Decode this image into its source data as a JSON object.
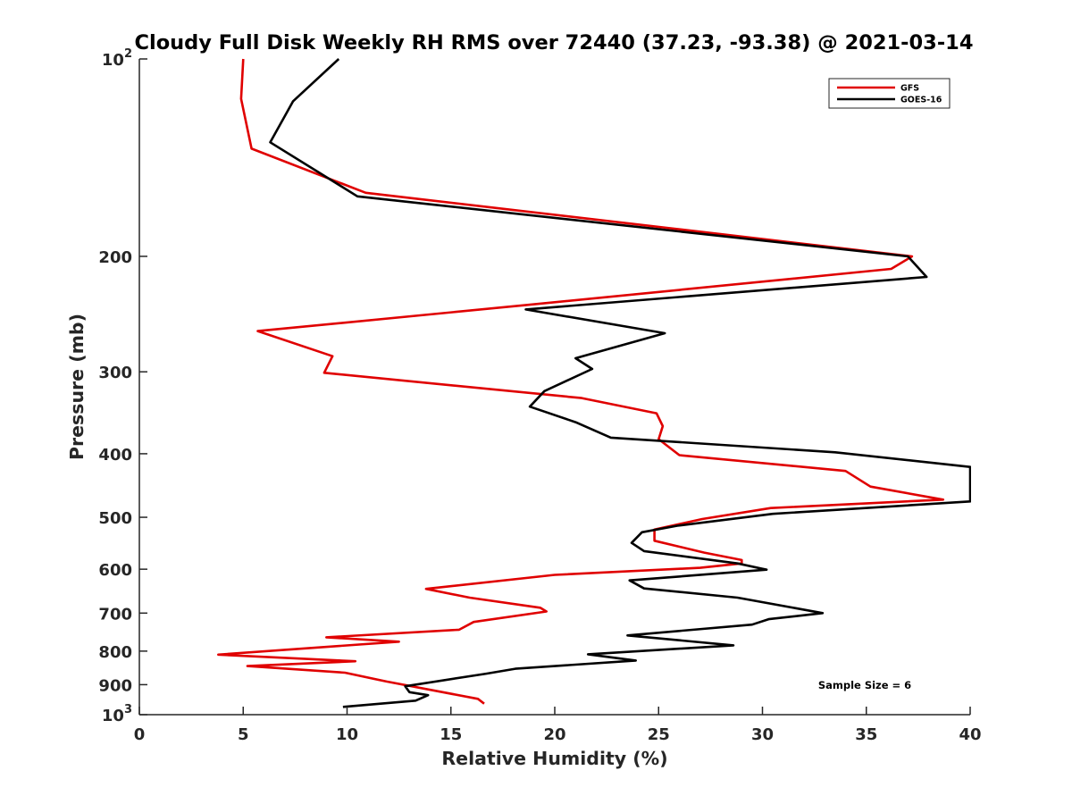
{
  "chart_data": {
    "type": "line",
    "title": "Cloudy Full Disk Weekly RH RMS over 72440 (37.23, -93.38) @ 2021-03-14",
    "xlabel": "Relative Humidity (%)",
    "ylabel": "Pressure (mb)",
    "xlim": [
      0,
      40
    ],
    "ylim": [
      1000,
      100
    ],
    "y_scale": "log",
    "y_reversed": true,
    "x_ticks": [
      "0",
      "5",
      "10",
      "15",
      "20",
      "25",
      "30",
      "35",
      "40"
    ],
    "y_ticks": [
      {
        "value": 100,
        "base": "10",
        "exp": "2"
      },
      {
        "value": 200,
        "label": "200"
      },
      {
        "value": 300,
        "label": "300"
      },
      {
        "value": 400,
        "label": "400"
      },
      {
        "value": 500,
        "label": "500"
      },
      {
        "value": 600,
        "label": "600"
      },
      {
        "value": 700,
        "label": "700"
      },
      {
        "value": 800,
        "label": "800"
      },
      {
        "value": 900,
        "label": "900"
      },
      {
        "value": 1000,
        "base": "10",
        "exp": "3"
      }
    ],
    "legend_position": "top-right",
    "grid": false,
    "annotation": "Sample Size = 6",
    "series": [
      {
        "name": "GFS",
        "color": "#e00000",
        "points": [
          [
            5.0,
            100
          ],
          [
            4.9,
            115
          ],
          [
            5.4,
            137
          ],
          [
            10.9,
            160
          ],
          [
            37.2,
            200
          ],
          [
            36.2,
            209
          ],
          [
            18.8,
            237
          ],
          [
            5.7,
            260
          ],
          [
            9.3,
            284
          ],
          [
            8.9,
            301
          ],
          [
            21.3,
            329
          ],
          [
            24.9,
            347
          ],
          [
            25.2,
            363
          ],
          [
            25.0,
            380
          ],
          [
            26.0,
            402
          ],
          [
            34.0,
            425
          ],
          [
            35.2,
            449
          ],
          [
            38.7,
            470
          ],
          [
            30.4,
            484
          ],
          [
            27.1,
            503
          ],
          [
            24.8,
            522
          ],
          [
            24.8,
            543
          ],
          [
            27.2,
            566
          ],
          [
            29.0,
            581
          ],
          [
            29.0,
            588
          ],
          [
            27.0,
            597
          ],
          [
            20.0,
            612
          ],
          [
            13.8,
            643
          ],
          [
            15.9,
            663
          ],
          [
            19.3,
            687
          ],
          [
            19.6,
            696
          ],
          [
            16.1,
            722
          ],
          [
            15.4,
            742
          ],
          [
            9.0,
            762
          ],
          [
            12.5,
            774
          ],
          [
            3.8,
            810
          ],
          [
            10.4,
            829
          ],
          [
            5.2,
            843
          ],
          [
            9.9,
            863
          ],
          [
            11.9,
            890
          ],
          [
            16.3,
            946
          ],
          [
            16.6,
            962
          ]
        ]
      },
      {
        "name": "GOES-16",
        "color": "#000000",
        "points": [
          [
            9.6,
            100
          ],
          [
            7.4,
            116
          ],
          [
            6.3,
            134
          ],
          [
            10.5,
            162
          ],
          [
            37.0,
            200
          ],
          [
            37.9,
            215
          ],
          [
            18.6,
            241
          ],
          [
            25.3,
            262
          ],
          [
            21.0,
            286
          ],
          [
            21.8,
            297
          ],
          [
            19.5,
            321
          ],
          [
            18.8,
            339
          ],
          [
            21.0,
            358
          ],
          [
            22.7,
            378
          ],
          [
            33.5,
            398
          ],
          [
            40.0,
            419
          ],
          [
            40.0,
            473
          ],
          [
            30.5,
            494
          ],
          [
            25.9,
            515
          ],
          [
            24.2,
            527
          ],
          [
            23.7,
            547
          ],
          [
            24.3,
            563
          ],
          [
            28.8,
            588
          ],
          [
            30.2,
            601
          ],
          [
            23.6,
            624
          ],
          [
            24.3,
            642
          ],
          [
            28.8,
            663
          ],
          [
            31.6,
            688
          ],
          [
            32.9,
            700
          ],
          [
            30.3,
            715
          ],
          [
            29.5,
            729
          ],
          [
            23.5,
            757
          ],
          [
            28.6,
            784
          ],
          [
            21.6,
            809
          ],
          [
            23.9,
            827
          ],
          [
            18.1,
            851
          ],
          [
            16.7,
            866
          ],
          [
            12.8,
            905
          ],
          [
            13.0,
            924
          ],
          [
            13.9,
            934
          ],
          [
            13.3,
            952
          ],
          [
            9.8,
            973
          ]
        ]
      }
    ]
  }
}
